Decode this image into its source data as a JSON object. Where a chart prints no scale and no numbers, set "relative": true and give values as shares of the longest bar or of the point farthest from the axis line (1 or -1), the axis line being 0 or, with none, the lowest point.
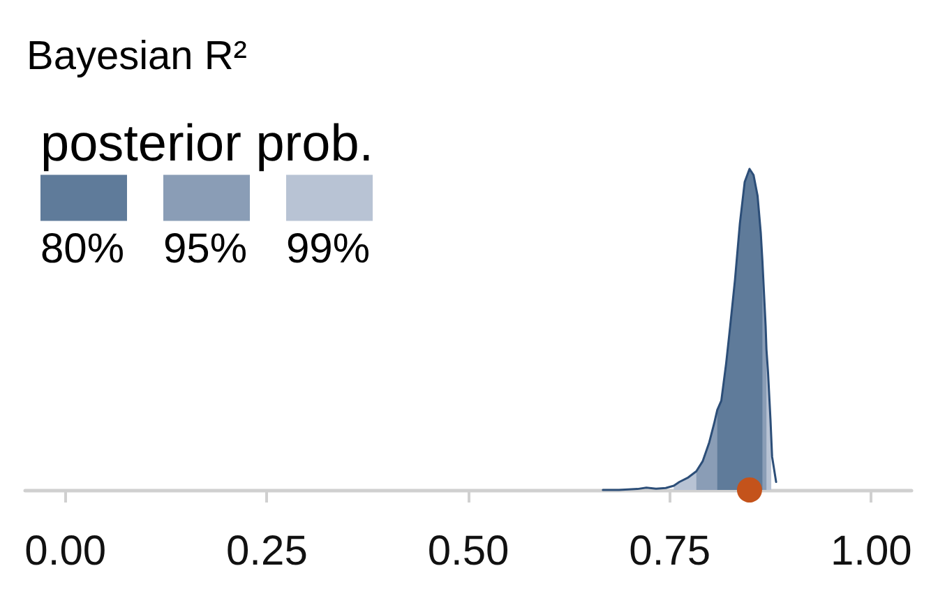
{
  "chart_data": {
    "type": "area",
    "title": "Bayesian R²",
    "legend_title": "posterior prob.",
    "relative": true,
    "legend": "top left",
    "marker": "none",
    "xlim": [
      -0.05,
      1.05
    ],
    "xticks": [
      {
        "value": 0,
        "label": "0.00"
      },
      {
        "value": 0.25,
        "label": "0.25"
      },
      {
        "value": 0.5,
        "label": "0.50"
      },
      {
        "value": 0.75,
        "label": "0.75"
      },
      {
        "value": 1,
        "label": "1.00"
      }
    ],
    "series": [
      {
        "name": "80%",
        "color": "#5f7b9a",
        "x": [
          0.809,
          0.814,
          0.82,
          0.825,
          0.831,
          0.837,
          0.843,
          0.849,
          0.854,
          0.859,
          0.863,
          0.865
        ],
        "values": [
          0.249,
          0.278,
          0.394,
          0.51,
          0.655,
          0.829,
          0.959,
          1,
          0.981,
          0.916,
          0.8,
          0.713
        ]
      },
      {
        "name": "95%",
        "color": "#8a9db6",
        "x": [
          0.783,
          0.791,
          0.799,
          0.805,
          0.809,
          0.814,
          0.82,
          0.825,
          0.831,
          0.837,
          0.843,
          0.849,
          0.854,
          0.859,
          0.863,
          0.865,
          0.869,
          0.87
        ],
        "values": [
          0.058,
          0.09,
          0.148,
          0.206,
          0.249,
          0.278,
          0.394,
          0.51,
          0.655,
          0.829,
          0.959,
          1,
          0.981,
          0.916,
          0.8,
          0.713,
          0.51,
          0.438
        ]
      },
      {
        "name": "99%",
        "color": "#b8c3d4",
        "x": [
          0.755,
          0.762,
          0.773,
          0.783,
          0.791,
          0.799,
          0.805,
          0.809,
          0.814,
          0.82,
          0.825,
          0.831,
          0.837,
          0.843,
          0.849,
          0.854,
          0.859,
          0.863,
          0.865,
          0.869,
          0.87,
          0.872,
          0.875,
          0.876
        ],
        "values": [
          0.013,
          0.025,
          0.039,
          0.058,
          0.09,
          0.148,
          0.206,
          0.249,
          0.278,
          0.394,
          0.51,
          0.655,
          0.829,
          0.959,
          1,
          0.981,
          0.916,
          0.8,
          0.713,
          0.51,
          0.438,
          0.365,
          0.22,
          0.162
        ]
      },
      {
        "type": "line",
        "color": "#2c4e78",
        "x": [
          0.667,
          0.687,
          0.71,
          0.721,
          0.733,
          0.745,
          0.755,
          0.762,
          0.773,
          0.783,
          0.791,
          0.799,
          0.805,
          0.809,
          0.814,
          0.82,
          0.825,
          0.831,
          0.837,
          0.843,
          0.849,
          0.854,
          0.859,
          0.863,
          0.865,
          0.869,
          0.87,
          0.872,
          0.875,
          0.876,
          0.877,
          0.882
        ],
        "values": [
          0,
          0,
          0.003,
          0.007,
          0.004,
          0.006,
          0.013,
          0.025,
          0.039,
          0.058,
          0.09,
          0.148,
          0.206,
          0.249,
          0.278,
          0.394,
          0.51,
          0.655,
          0.829,
          0.959,
          1,
          0.981,
          0.916,
          0.8,
          0.713,
          0.51,
          0.438,
          0.365,
          0.22,
          0.162,
          0.104,
          0.025
        ]
      },
      {
        "type": "scatter",
        "color": "#c4531b",
        "marker": "circle",
        "x": [
          0.849
        ],
        "values": [
          0
        ]
      }
    ]
  }
}
